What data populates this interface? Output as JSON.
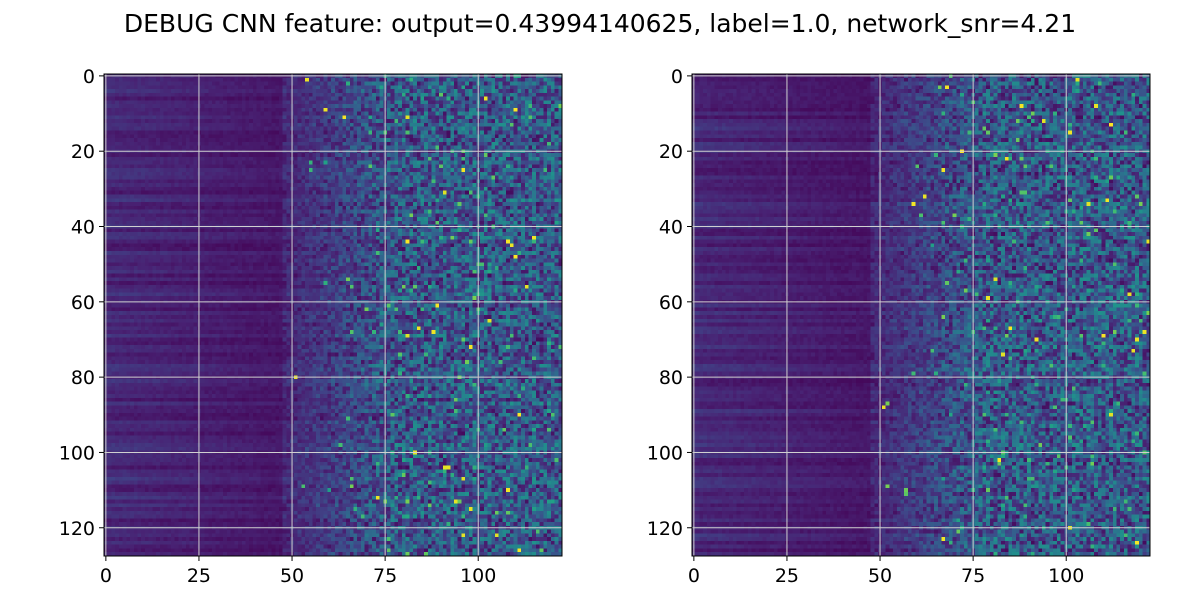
{
  "title": "DEBUG CNN feature: output=0.43994140625, label=1.0, network_snr=4.21",
  "chart_data": [
    {
      "type": "heatmap",
      "title": "",
      "xlabel": "",
      "ylabel": "",
      "colormap": "viridis",
      "grid": true,
      "n_rows": 128,
      "n_cols": 123,
      "xlim": [
        -0.5,
        122.5
      ],
      "ylim": [
        127.5,
        -0.5
      ],
      "xticks": [
        0,
        25,
        50,
        75,
        100
      ],
      "yticks": [
        0,
        20,
        40,
        60,
        80,
        100,
        120
      ],
      "xtick_labels": [
        "0",
        "25",
        "50",
        "75",
        "100"
      ],
      "ytick_labels": [
        "0",
        "20",
        "40",
        "60",
        "80",
        "100",
        "120"
      ],
      "structure": "smooth low-intensity horizontal banding for columns 0-50, noisy speckled values increasing toward columns 75-122 with sparse bright (yellow) pixels",
      "seed": 11
    },
    {
      "type": "heatmap",
      "title": "",
      "xlabel": "",
      "ylabel": "",
      "colormap": "viridis",
      "grid": true,
      "n_rows": 128,
      "n_cols": 123,
      "xlim": [
        -0.5,
        122.5
      ],
      "ylim": [
        127.5,
        -0.5
      ],
      "xticks": [
        0,
        25,
        50,
        75,
        100
      ],
      "yticks": [
        0,
        20,
        40,
        60,
        80,
        100,
        120
      ],
      "xtick_labels": [
        "0",
        "25",
        "50",
        "75",
        "100"
      ],
      "ytick_labels": [
        "0",
        "20",
        "40",
        "60",
        "80",
        "100",
        "120"
      ],
      "structure": "smooth low-intensity horizontal banding for columns 0-45, noisy speckled values increasing toward columns 75-122 with sparse bright (yellow) pixels",
      "seed": 29
    }
  ]
}
